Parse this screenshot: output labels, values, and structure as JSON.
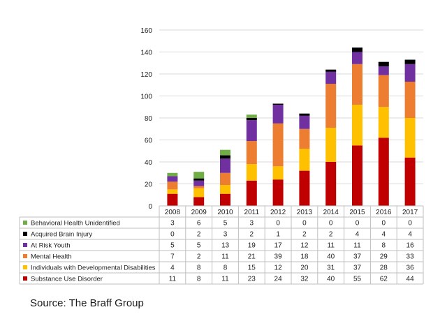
{
  "chart_data": {
    "type": "bar",
    "stacked": true,
    "categories": [
      "2008",
      "2009",
      "2010",
      "2011",
      "2012",
      "2013",
      "2014",
      "2015",
      "2016",
      "2017"
    ],
    "ylim": [
      0,
      160
    ],
    "yticks": [
      0,
      20,
      40,
      60,
      80,
      100,
      120,
      140,
      160
    ],
    "grid": true,
    "legend": "data-table-below",
    "series": [
      {
        "name": "Substance Use Disorder",
        "color": "#C00000",
        "values": [
          11,
          8,
          11,
          23,
          24,
          32,
          40,
          55,
          62,
          44
        ]
      },
      {
        "name": "Individuals with Developmental Disabilities",
        "color": "#FFC000",
        "values": [
          4,
          8,
          8,
          15,
          12,
          20,
          31,
          37,
          28,
          36
        ]
      },
      {
        "name": "Mental Health",
        "color": "#ED7D31",
        "values": [
          7,
          2,
          11,
          21,
          39,
          18,
          40,
          37,
          29,
          33
        ]
      },
      {
        "name": "At Risk Youth",
        "color": "#7030A0",
        "values": [
          5,
          5,
          13,
          19,
          17,
          12,
          11,
          11,
          8,
          16
        ]
      },
      {
        "name": "Acquired Brain Injury",
        "color": "#000000",
        "values": [
          0,
          2,
          3,
          2,
          1,
          2,
          2,
          4,
          4,
          4
        ]
      },
      {
        "name": "Behavioral Health Unidentified",
        "color": "#70AD47",
        "values": [
          3,
          6,
          5,
          3,
          0,
          0,
          0,
          0,
          0,
          0
        ]
      }
    ],
    "table_row_order": [
      "Behavioral Health Unidentified",
      "Acquired Brain Injury",
      "At Risk Youth",
      "Mental Health",
      "Individuals with Developmental Disabilities",
      "Substance Use Disorder"
    ]
  },
  "source": "Source: The Braff Group"
}
